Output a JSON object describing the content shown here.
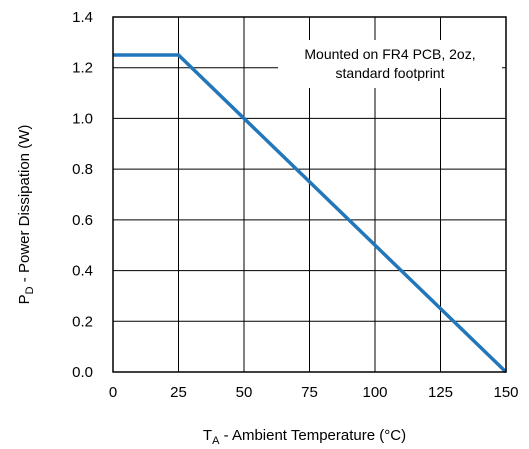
{
  "chart_data": {
    "type": "line",
    "xlabel_main": "T",
    "xlabel_sub": "A",
    "xlabel_rest": " - Ambient Temperature (°C)",
    "ylabel_main": "P",
    "ylabel_sub": "D",
    "ylabel_rest": " - Power Dissipation  (W)",
    "xlim": [
      0,
      150
    ],
    "ylim": [
      0.0,
      1.4
    ],
    "xticks": [
      0,
      25,
      50,
      75,
      100,
      125,
      150
    ],
    "xtick_labels": [
      "0",
      "25",
      "50",
      "75",
      "100",
      "125",
      "150"
    ],
    "yticks": [
      0.0,
      0.2,
      0.4,
      0.6,
      0.8,
      1.0,
      1.2,
      1.4
    ],
    "ytick_labels": [
      "0.0",
      "0.2",
      "0.4",
      "0.6",
      "0.8",
      "1.0",
      "1.2",
      "1.4"
    ],
    "grid": true,
    "series": [
      {
        "x": [
          0,
          25,
          150
        ],
        "y": [
          1.25,
          1.25,
          0.0
        ]
      }
    ],
    "annotation": [
      "Mounted on FR4 PCB, 2oz,",
      "standard footprint"
    ],
    "colors": {
      "line": "#2277BB",
      "grid": "#000000",
      "frame": "#000000"
    }
  }
}
